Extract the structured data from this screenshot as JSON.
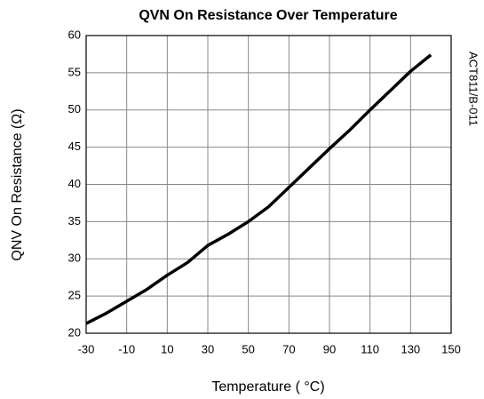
{
  "chart_data": {
    "type": "line",
    "title": "QVN On Resistance Over Temperature",
    "x_label": "Temperature ( °C)",
    "y_label": "QNV On Resistance (Ω)",
    "annotation": "ACT811/B-011",
    "x": [
      -30,
      -20,
      -10,
      0,
      10,
      20,
      30,
      40,
      50,
      60,
      70,
      80,
      90,
      100,
      110,
      120,
      130,
      140
    ],
    "series": [
      {
        "name": "QVN On Resistance",
        "color": "#000000",
        "values": [
          21.3,
          22.7,
          24.3,
          25.9,
          27.8,
          29.5,
          31.8,
          33.3,
          35.0,
          37.0,
          39.6,
          42.2,
          44.8,
          47.3,
          50.0,
          52.6,
          55.2,
          57.4
        ]
      }
    ],
    "xlim": [
      -30,
      150
    ],
    "xticks": [
      -30,
      -10,
      10,
      30,
      50,
      70,
      90,
      110,
      130,
      150
    ],
    "ylim": [
      20,
      60
    ],
    "yticks": [
      20,
      25,
      30,
      35,
      40,
      45,
      50,
      55,
      60
    ],
    "grid": true
  }
}
